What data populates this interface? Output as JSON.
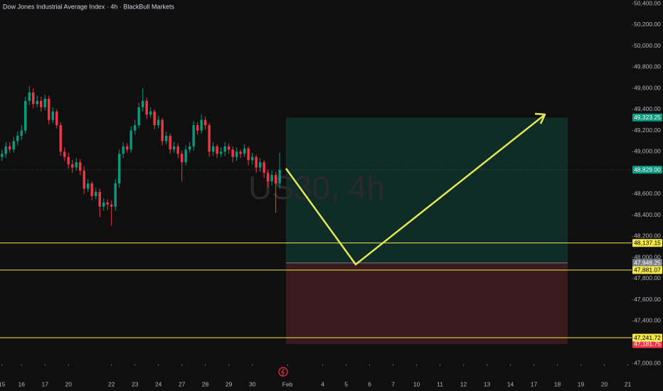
{
  "chart_data": {
    "type": "candlestick",
    "title": "Dow Jones Industrial Average Index · 4h · BlackBull Markets",
    "watermark": "US30, 4h",
    "up_color": "#089981",
    "down_color": "#f23645",
    "xlim": [
      -0.5,
      161
    ],
    "xticks": [
      {
        "value": 0,
        "label": "15"
      },
      {
        "value": 5,
        "label": "16"
      },
      {
        "value": 11,
        "label": "17"
      },
      {
        "value": 17,
        "label": "20"
      },
      {
        "value": 28,
        "label": "22"
      },
      {
        "value": 34,
        "label": "23"
      },
      {
        "value": 40,
        "label": "24"
      },
      {
        "value": 46,
        "label": "27"
      },
      {
        "value": 52,
        "label": "28"
      },
      {
        "value": 58,
        "label": "29"
      },
      {
        "value": 64,
        "label": "30"
      },
      {
        "value": 73,
        "label": "Feb"
      },
      {
        "value": 82,
        "label": "4"
      },
      {
        "value": 88,
        "label": "5"
      },
      {
        "value": 94,
        "label": "6"
      },
      {
        "value": 100,
        "label": "7"
      },
      {
        "value": 106,
        "label": "10"
      },
      {
        "value": 112,
        "label": "11"
      },
      {
        "value": 118,
        "label": "12"
      },
      {
        "value": 124,
        "label": "13"
      },
      {
        "value": 130,
        "label": "14"
      },
      {
        "value": 136,
        "label": "17"
      },
      {
        "value": 142,
        "label": "18"
      },
      {
        "value": 148,
        "label": "19"
      },
      {
        "value": 154,
        "label": "20"
      },
      {
        "value": 160,
        "label": "21"
      }
    ],
    "ylim": [
      47000,
      50400
    ],
    "yticks": [
      {
        "value": 50400,
        "label": "50,400.00"
      },
      {
        "value": 50200,
        "label": "50,200.00"
      },
      {
        "value": 50000,
        "label": "50,000.00"
      },
      {
        "value": 49800,
        "label": "49,800.00"
      },
      {
        "value": 49600,
        "label": "49,600.00"
      },
      {
        "value": 49400,
        "label": "49,400.00"
      },
      {
        "value": 49200,
        "label": "49,200.00"
      },
      {
        "value": 49000,
        "label": "49,000.00"
      },
      {
        "value": 48600,
        "label": "48,600.00"
      },
      {
        "value": 48400,
        "label": "48,400.00"
      },
      {
        "value": 48200,
        "label": "48,200.00"
      },
      {
        "value": 48000,
        "label": "48,000.00"
      },
      {
        "value": 47800,
        "label": "47,800.00"
      },
      {
        "value": 47600,
        "label": "47,600.00"
      },
      {
        "value": 47400,
        "label": "47,400.00"
      },
      {
        "value": 47000,
        "label": "47,000.00"
      }
    ],
    "open": [
      48950,
      48980,
      49050,
      49020,
      49100,
      49150,
      49200,
      49480,
      49560,
      49450,
      49480,
      49420,
      49500,
      49300,
      49380,
      49250,
      49000,
      48950,
      48880,
      48850,
      48900,
      48820,
      48650,
      48700,
      48580,
      48620,
      48480,
      48520,
      48500,
      48480,
      48700,
      48980,
      49050,
      49020,
      49200,
      49250,
      49420,
      49480,
      49350,
      49380,
      49250,
      49300,
      49100,
      49150,
      49020,
      49050,
      48980,
      48900,
      49020,
      49050,
      49250,
      49200,
      49300,
      49250,
      49000,
      49050,
      48980,
      49000,
      49050,
      49020,
      48950,
      49000,
      48980,
      49030,
      48920,
      48950,
      48850,
      48900,
      48800,
      48720,
      48780,
      48700
    ],
    "high": [
      49020,
      49090,
      49090,
      49140,
      49190,
      49250,
      49520,
      49620,
      49600,
      49530,
      49520,
      49540,
      49530,
      49420,
      49400,
      49280,
      49040,
      48990,
      48920,
      48940,
      48930,
      48860,
      48740,
      48720,
      48660,
      48650,
      48560,
      48550,
      48540,
      48740,
      49020,
      49090,
      49080,
      49240,
      49300,
      49460,
      49600,
      49510,
      49420,
      49400,
      49340,
      49320,
      49190,
      49170,
      49090,
      49080,
      49010,
      49060,
      49090,
      49290,
      49280,
      49350,
      49330,
      49270,
      49090,
      49070,
      49040,
      49090,
      49080,
      49050,
      49040,
      49020,
      49070,
      49050,
      48990,
      48970,
      48940,
      48920,
      48830,
      48820,
      48810,
      48990
    ],
    "low": [
      48910,
      48940,
      48990,
      48990,
      49060,
      49110,
      49170,
      49440,
      49410,
      49420,
      49380,
      49390,
      49260,
      49270,
      49220,
      48960,
      48910,
      48840,
      48800,
      48820,
      48780,
      48600,
      48620,
      48540,
      48550,
      48380,
      48440,
      48450,
      48300,
      48440,
      48660,
      48940,
      48990,
      48990,
      49160,
      49220,
      49380,
      49310,
      49320,
      49210,
      49220,
      49060,
      49070,
      48980,
      48990,
      48940,
      48720,
      48870,
      48990,
      49010,
      49160,
      49170,
      49210,
      48950,
      48960,
      48940,
      48950,
      48960,
      48980,
      48900,
      48910,
      48940,
      48950,
      48870,
      48880,
      48800,
      48810,
      48750,
      48660,
      48680,
      48420,
      48650
    ],
    "close": [
      48980,
      49050,
      49020,
      49100,
      49150,
      49200,
      49480,
      49560,
      49450,
      49480,
      49420,
      49500,
      49300,
      49380,
      49250,
      49000,
      48950,
      48880,
      48850,
      48900,
      48820,
      48650,
      48700,
      48580,
      48620,
      48480,
      48520,
      48500,
      48480,
      48700,
      48980,
      49050,
      49020,
      49200,
      49250,
      49420,
      49480,
      49350,
      49380,
      49250,
      49300,
      49100,
      49150,
      49020,
      49050,
      48980,
      48900,
      49020,
      49050,
      49250,
      49200,
      49300,
      49250,
      49000,
      49050,
      48980,
      49000,
      49050,
      49020,
      48950,
      49000,
      48980,
      49030,
      48920,
      48950,
      48850,
      48900,
      48800,
      48720,
      48780,
      48700,
      48829
    ],
    "last_price": {
      "value": 48829,
      "label": "48,829.00",
      "color": "#089981"
    },
    "position": {
      "target": {
        "value": 49323.25,
        "label": "49,323.25",
        "color": "#089981"
      },
      "entry": {
        "value": 47948.25,
        "label": "47,948.25",
        "color": "#787b86"
      },
      "stop": {
        "value": 47181.75,
        "label": "47,181.75",
        "color": "#f23645"
      },
      "profit_fill": "#0f2c26",
      "loss_fill": "#3a1a1d"
    },
    "levels": [
      {
        "value": 48137.15,
        "label": "48,137.15"
      },
      {
        "value": 47881.07,
        "label": "47,881.07"
      },
      {
        "value": 47241.72,
        "label": "47,241.72"
      }
    ],
    "level_color": "#f5e94a"
  }
}
